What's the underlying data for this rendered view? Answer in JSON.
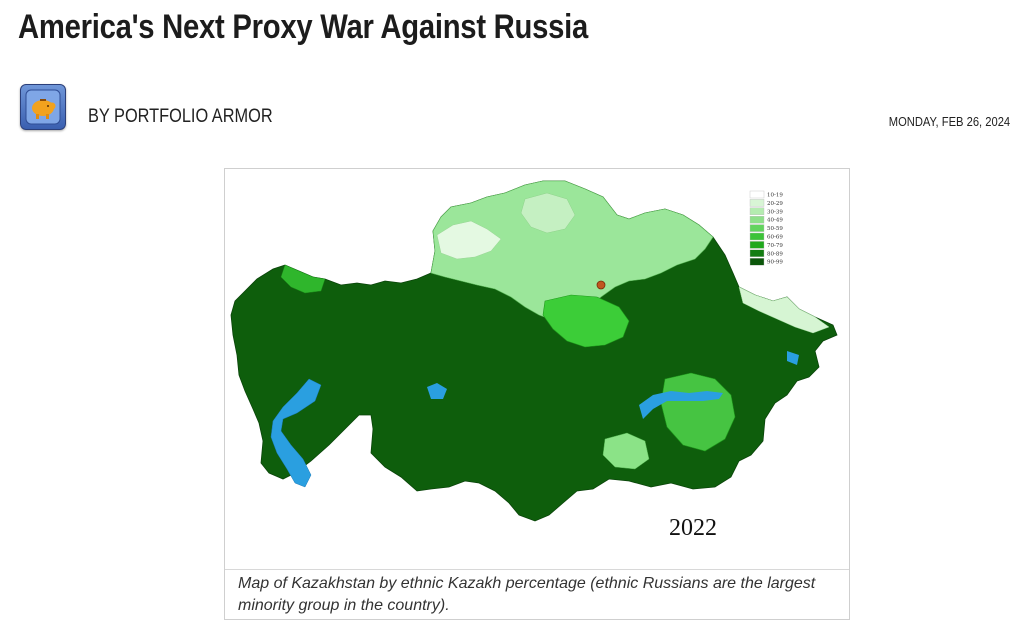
{
  "article": {
    "title": "America's Next Proxy War Against Russia",
    "author": "BY PORTFOLIO ARMOR",
    "date": "MONDAY, FEB 26, 2024"
  },
  "avatar": {
    "icon": "piggy-bank-icon",
    "color": "#f2a21e"
  },
  "map": {
    "year_label": "2022",
    "legend": [
      "10-19",
      "20-29",
      "30-39",
      "40-49",
      "50-59",
      "60-69",
      "70-79",
      "80-89",
      "90-99"
    ],
    "legend_colors": [
      "#ffffff",
      "#d8f5d5",
      "#b4ecb0",
      "#8ee08a",
      "#62d45e",
      "#3cc338",
      "#1fa81c",
      "#137d12",
      "#0b560a"
    ],
    "water_color": "#2a9fe0",
    "caption": "Map of Kazakhstan by ethnic Kazakh percentage (ethnic Russians are the largest minority group in the country)."
  }
}
